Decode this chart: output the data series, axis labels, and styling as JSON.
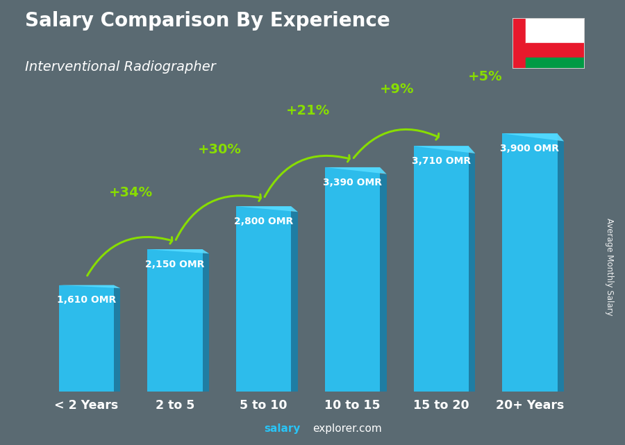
{
  "title": "Salary Comparison By Experience",
  "subtitle": "Interventional Radiographer",
  "categories": [
    "< 2 Years",
    "2 to 5",
    "5 to 10",
    "10 to 15",
    "15 to 20",
    "20+ Years"
  ],
  "values": [
    1610,
    2150,
    2800,
    3390,
    3710,
    3900
  ],
  "labels": [
    "1,610 OMR",
    "2,150 OMR",
    "2,800 OMR",
    "3,390 OMR",
    "3,710 OMR",
    "3,900 OMR"
  ],
  "pct_changes": [
    "+34%",
    "+30%",
    "+21%",
    "+9%",
    "+5%"
  ],
  "bar_color": "#29c4f6",
  "bar_color_dark": "#1a7fa8",
  "bg_color": "#2a3a4a",
  "text_color": "#ffffff",
  "green_color": "#88dd00",
  "ylabel": "Average Monthly Salary",
  "footer_bold": "salary",
  "footer_normal": "explorer.com",
  "figsize": [
    9.0,
    6.41
  ],
  "dpi": 100,
  "flag_colors": {
    "red": "#e8192c",
    "white": "#ffffff",
    "green": "#009a44"
  }
}
